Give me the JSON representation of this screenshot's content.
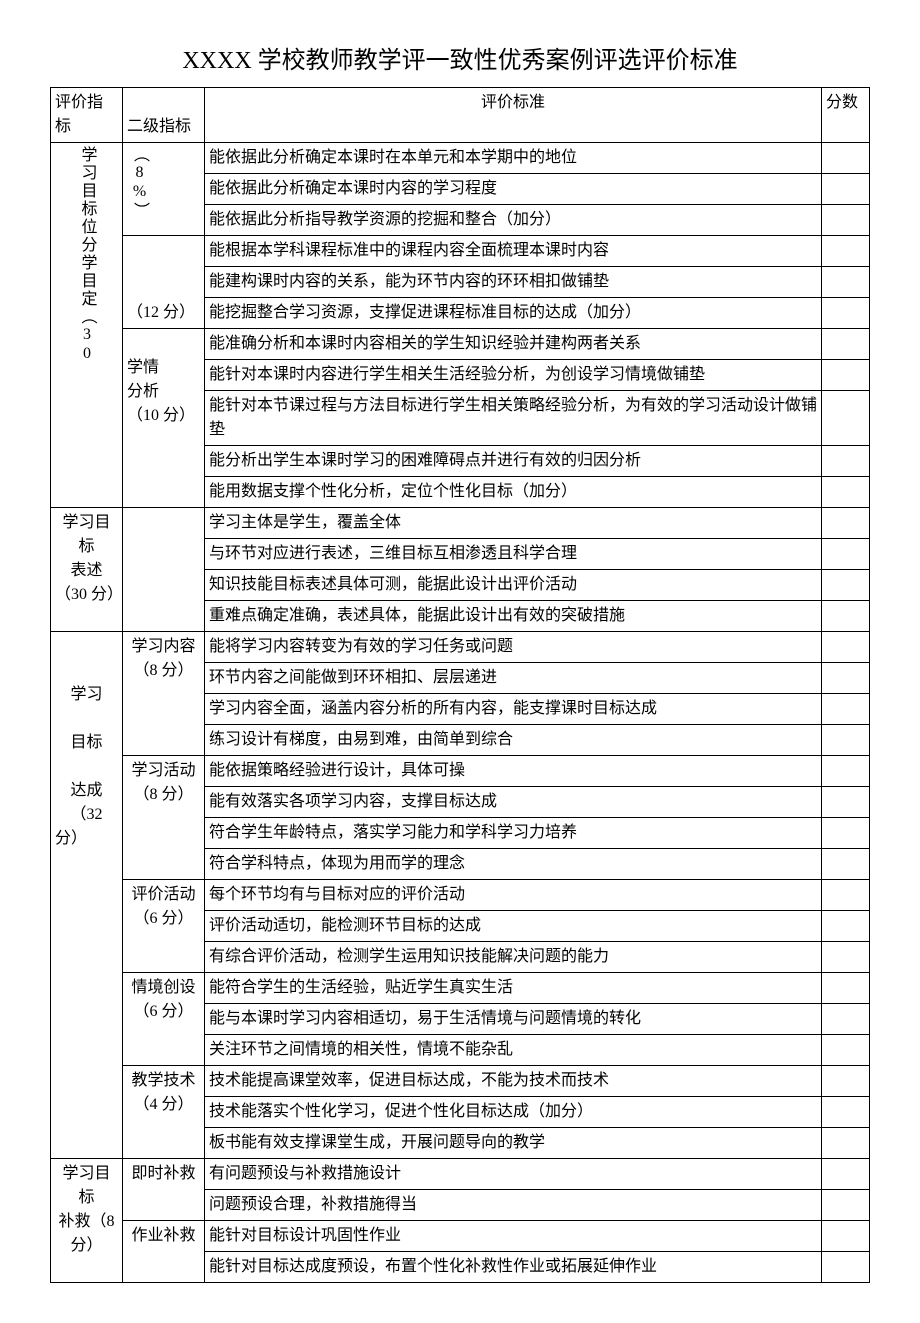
{
  "title": "XXXX 学校教师教学评一致性优秀案例评选评价标准",
  "headers": {
    "col1": "评价指标",
    "col2": "二级指标",
    "col3": "评价标准",
    "col4": "分数"
  },
  "section1": {
    "label": "学习目标位分学目定（30",
    "sub1_label": "（8%）",
    "sub1_rows": [
      "能依据此分析确定本课时在本单元和本学期中的地位",
      "能依据此分析确定本课时内容的学习程度",
      "能依据此分析指导教学资源的挖掘和整合（加分）"
    ],
    "sub2_label": "（12 分）",
    "sub2_rows": [
      "能根据本学科课程标准中的课程内容全面梳理本课时内容",
      "能建构课时内容的关系，能为环节内容的环环相扣做铺垫",
      "能挖掘整合学习资源，支撑促进课程标准目标的达成（加分）"
    ],
    "sub3_label1": "学情",
    "sub3_label2": "分析",
    "sub3_label3": "（10 分）",
    "sub3_rows": [
      "能准确分析和本课时内容相关的学生知识经验并建构两者关系",
      "能针对本课时内容进行学生相关生活经验分析，为创设学习情境做铺垫",
      "能针对本节课过程与方法目标进行学生相关策略经验分析，为有效的学习活动设计做铺垫",
      "能分析出学生本课时学习的困难障碍点并进行有效的归因分析",
      "能用数据支撑个性化分析，定位个性化目标（加分）"
    ]
  },
  "section2": {
    "label1": "学习目标",
    "label2": "表述",
    "label3": "（30 分）",
    "rows": [
      "学习主体是学生，覆盖全体",
      "与环节对应进行表述，三维目标互相渗透且科学合理",
      "知识技能目标表述具体可测，能据此设计出评价活动",
      "重难点确定准确，表述具体，能据此设计出有效的突破措施"
    ]
  },
  "section3": {
    "label1": "学习",
    "label2": "目标",
    "label3": "达成",
    "label4": "（32",
    "label5": "分）",
    "sub1_label1": "学习内容",
    "sub1_label2": "（8 分）",
    "sub1_rows": [
      "能将学习内容转变为有效的学习任务或问题",
      "环节内容之间能做到环环相扣、层层递进",
      "学习内容全面，涵盖内容分析的所有内容，能支撑课时目标达成",
      "练习设计有梯度，由易到难，由简单到综合"
    ],
    "sub2_label1": "学习活动",
    "sub2_label2": "（8 分）",
    "sub2_rows": [
      "能依据策略经验进行设计，具体可操",
      "能有效落实各项学习内容，支撑目标达成",
      "符合学生年龄特点，落实学习能力和学科学习力培养",
      "符合学科特点，体现为用而学的理念"
    ],
    "sub3_label1": "评价活动",
    "sub3_label2": "（6 分）",
    "sub3_rows": [
      "每个环节均有与目标对应的评价活动",
      "评价活动适切，能检测环节目标的达成",
      "有综合评价活动，检测学生运用知识技能解决问题的能力"
    ],
    "sub4_label1": "情境创设",
    "sub4_label2": "（6 分）",
    "sub4_rows": [
      "能符合学生的生活经验，贴近学生真实生活",
      "能与本课时学习内容相适切，易于生活情境与问题情境的转化",
      "关注环节之间情境的相关性，情境不能杂乱"
    ],
    "sub5_label1": "教学技术",
    "sub5_label2": "（4 分）",
    "sub5_rows": [
      "技术能提高课堂效率，促进目标达成，不能为技术而技术",
      "技术能落实个性化学习，促进个性化目标达成（加分）",
      "板书能有效支撑课堂生成，开展问题导向的教学"
    ]
  },
  "section4": {
    "label1": "学习目标",
    "label2": "补救（8",
    "label3": "分）",
    "sub1_label": "即时补救",
    "sub1_rows": [
      "有问题预设与补救措施设计",
      "问题预设合理，补救措施得当"
    ],
    "sub2_label": "作业补救",
    "sub2_rows": [
      "能针对目标设计巩固性作业",
      "能针对目标达成度预设，布置个性化补救性作业或拓展延伸作业"
    ]
  }
}
